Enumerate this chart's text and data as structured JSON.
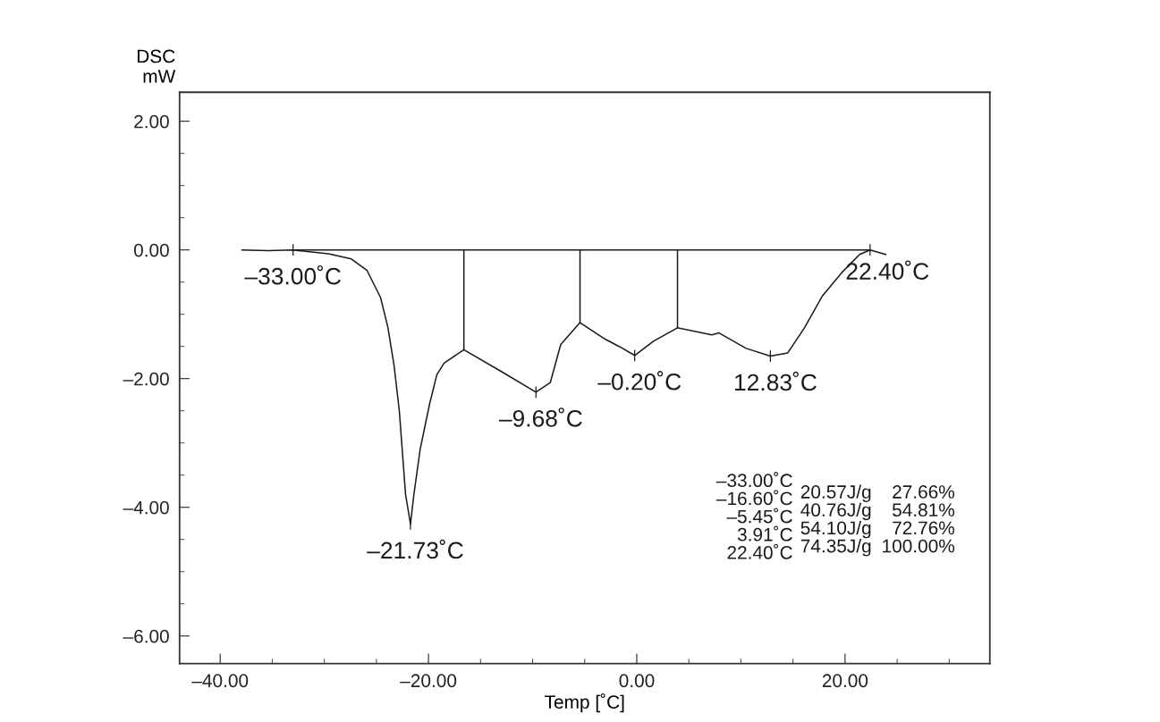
{
  "chart_data": {
    "type": "line",
    "xlabel": "Temp [˚C]",
    "ylabel": "DSC\nmW",
    "series": [
      {
        "color": "#1a1a1a",
        "x": [
          -37.9,
          -35.4,
          -33.07,
          -29.6,
          -27.4,
          -25.9,
          -24.6,
          -23.9,
          -23.3,
          -22.8,
          -22.2,
          -21.73,
          -21.4,
          -20.8,
          -19.9,
          -19.2,
          -18.5,
          -16.6,
          -12.9,
          -9.68,
          -8.3,
          -7.3,
          -5.45,
          -3.0,
          -1.7,
          -0.2,
          1.6,
          3.91,
          7.2,
          7.9,
          10.5,
          12.83,
          14.5,
          16.1,
          17.8,
          19.7,
          21.4,
          22.4,
          23.9
        ],
        "values": [
          0.0,
          -0.01,
          0.0,
          -0.06,
          -0.14,
          -0.32,
          -0.74,
          -1.2,
          -1.8,
          -2.5,
          -3.8,
          -4.26,
          -3.8,
          -3.1,
          -2.4,
          -1.94,
          -1.76,
          -1.55,
          -1.9,
          -2.21,
          -2.06,
          -1.47,
          -1.13,
          -1.39,
          -1.5,
          -1.64,
          -1.42,
          -1.21,
          -1.32,
          -1.29,
          -1.53,
          -1.65,
          -1.6,
          -1.21,
          -0.72,
          -0.35,
          -0.07,
          0.0,
          -0.07
        ]
      },
      {
        "color": "#1a1a1a",
        "x": [
          -33.0,
          22.4
        ],
        "values": [
          0.0,
          0.0
        ]
      },
      {
        "color": "#1a1a1a",
        "x": [
          -16.6,
          -16.6
        ],
        "values": [
          0.0,
          -1.55
        ]
      },
      {
        "color": "#1a1a1a",
        "x": [
          -5.45,
          -5.45
        ],
        "values": [
          0.0,
          -1.13
        ]
      },
      {
        "color": "#1a1a1a",
        "x": [
          3.91,
          3.91
        ],
        "values": [
          0.0,
          -1.21
        ]
      }
    ],
    "xlim": [
      -43.9,
      33.9
    ],
    "ylim": [
      -6.43,
      2.45
    ],
    "xticks": [
      {
        "value": -40,
        "label": "–40.00"
      },
      {
        "value": -35,
        "label": null
      },
      {
        "value": -30,
        "label": null
      },
      {
        "value": -25,
        "label": null
      },
      {
        "value": -20,
        "label": "–20.00"
      },
      {
        "value": -15,
        "label": null
      },
      {
        "value": -10,
        "label": null
      },
      {
        "value": -5,
        "label": null
      },
      {
        "value": 0,
        "label": "0.00"
      },
      {
        "value": 5,
        "label": null
      },
      {
        "value": 10,
        "label": null
      },
      {
        "value": 15,
        "label": null
      },
      {
        "value": 20,
        "label": "20.00"
      },
      {
        "value": 25,
        "label": null
      },
      {
        "value": 30,
        "label": null
      }
    ],
    "yticks": [
      {
        "value": 2,
        "label": "2.00"
      },
      {
        "value": 1.5,
        "label": null
      },
      {
        "value": 1,
        "label": null
      },
      {
        "value": 0.5,
        "label": null
      },
      {
        "value": 0,
        "label": "0.00"
      },
      {
        "value": -0.5,
        "label": null
      },
      {
        "value": -1,
        "label": null
      },
      {
        "value": -1.5,
        "label": null
      },
      {
        "value": -2,
        "label": "–2.00"
      },
      {
        "value": -2.5,
        "label": null
      },
      {
        "value": -3,
        "label": null
      },
      {
        "value": -3.5,
        "label": null
      },
      {
        "value": -4,
        "label": "–4.00"
      },
      {
        "value": -4.5,
        "label": null
      },
      {
        "value": -5,
        "label": null
      },
      {
        "value": -5.5,
        "label": null
      },
      {
        "value": -6,
        "label": "–6.00"
      }
    ],
    "grid": false,
    "legend": false,
    "marker": "none",
    "line_style": "solid",
    "annotations": [
      {
        "text": "–33.00˚C",
        "x": -33.0,
        "y": 0.0
      },
      {
        "text": "–21.73˚C",
        "x": -21.73,
        "y": -4.26
      },
      {
        "text": "–9.68˚C",
        "x": -9.68,
        "y": -2.21
      },
      {
        "text": "–0.20˚C",
        "x": -0.2,
        "y": -1.64
      },
      {
        "text": "12.83˚C",
        "x": 12.83,
        "y": -1.65
      },
      {
        "text": "22.40˚C",
        "x": 22.4,
        "y": 0.0
      },
      "–33.00˚C\n–16.60˚C\n–5.45˚C\n3.91˚C\n22.40˚C",
      "20.57J/g\n40.76J/g\n54.10J/g\n74.35J/g",
      "27.66%\n54.81%\n72.76%\n100.00%"
    ]
  }
}
